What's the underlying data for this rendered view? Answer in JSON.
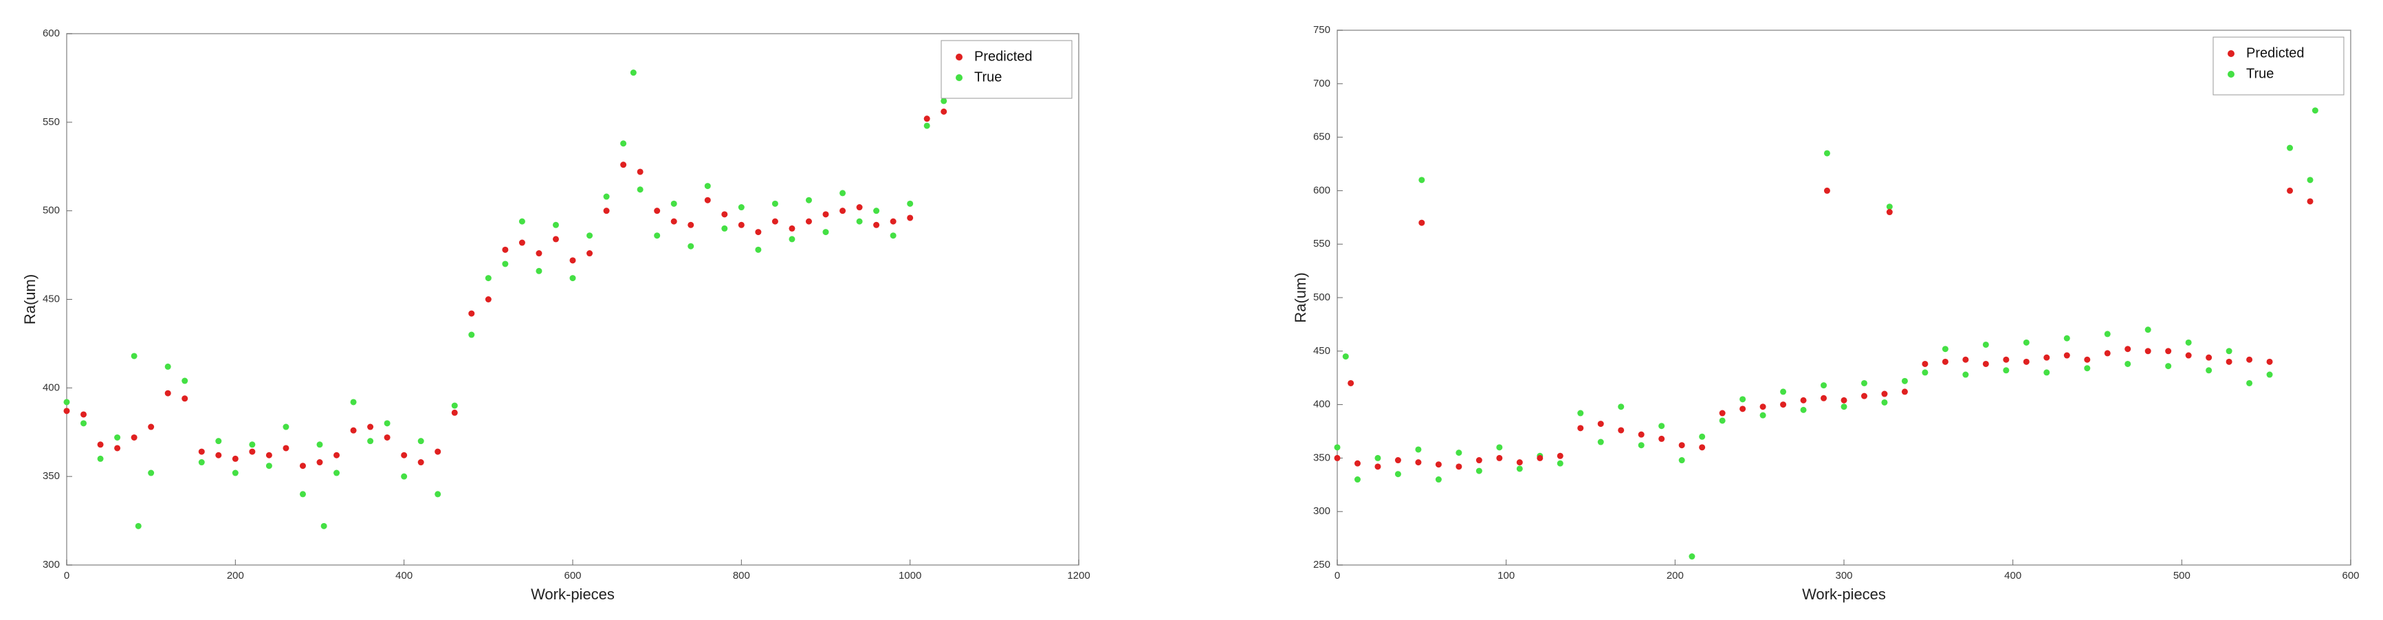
{
  "chart_data": [
    {
      "type": "scatter",
      "xlabel": "Work-pieces",
      "ylabel": "Ra(um)",
      "xlim": [
        0,
        1200
      ],
      "xticks": [
        0,
        200,
        400,
        600,
        800,
        1000,
        1200
      ],
      "ylim": [
        300,
        600
      ],
      "yticks": [
        300,
        350,
        400,
        450,
        500,
        550,
        600
      ],
      "legend": "upper right",
      "series": [
        {
          "name": "Predicted",
          "color": "#e02020",
          "x": [
            0,
            20,
            40,
            60,
            80,
            100,
            120,
            140,
            160,
            180,
            200,
            220,
            240,
            260,
            280,
            300,
            320,
            340,
            360,
            380,
            400,
            420,
            440,
            460,
            480,
            500,
            520,
            540,
            560,
            580,
            600,
            620,
            640,
            660,
            680,
            700,
            720,
            740,
            760,
            780,
            800,
            820,
            840,
            860,
            880,
            900,
            920,
            940,
            960,
            980,
            1000,
            1020,
            1040
          ],
          "values": [
            387,
            385,
            368,
            366,
            372,
            378,
            397,
            394,
            364,
            362,
            360,
            364,
            362,
            366,
            356,
            358,
            362,
            376,
            378,
            372,
            362,
            358,
            364,
            386,
            442,
            450,
            478,
            482,
            476,
            484,
            472,
            476,
            500,
            526,
            522,
            500,
            494,
            492,
            506,
            498,
            492,
            488,
            494,
            490,
            494,
            498,
            500,
            502,
            492,
            494,
            496,
            552,
            556
          ]
        },
        {
          "name": "True",
          "color": "#44e044",
          "x": [
            0,
            20,
            40,
            60,
            80,
            100,
            120,
            140,
            160,
            180,
            200,
            220,
            240,
            260,
            280,
            300,
            320,
            340,
            360,
            380,
            400,
            420,
            440,
            460,
            480,
            500,
            520,
            540,
            560,
            580,
            600,
            620,
            640,
            660,
            680,
            700,
            720,
            740,
            760,
            780,
            800,
            820,
            840,
            860,
            880,
            900,
            920,
            940,
            960,
            980,
            1000,
            1020,
            1040,
            85,
            305,
            672
          ],
          "values": [
            392,
            380,
            360,
            372,
            418,
            352,
            412,
            404,
            358,
            370,
            352,
            368,
            356,
            378,
            340,
            368,
            352,
            392,
            370,
            380,
            350,
            370,
            340,
            390,
            430,
            462,
            470,
            494,
            466,
            492,
            462,
            486,
            508,
            538,
            512,
            486,
            504,
            480,
            514,
            490,
            502,
            478,
            504,
            484,
            506,
            488,
            510,
            494,
            500,
            486,
            504,
            548,
            562,
            322,
            322,
            578
          ]
        }
      ]
    },
    {
      "type": "scatter",
      "xlabel": "Work-pieces",
      "ylabel": "Ra(um)",
      "xlim": [
        0,
        600
      ],
      "xticks": [
        0,
        100,
        200,
        300,
        400,
        500,
        600
      ],
      "ylim": [
        250,
        750
      ],
      "yticks": [
        250,
        300,
        350,
        400,
        450,
        500,
        550,
        600,
        650,
        700,
        750
      ],
      "legend": "upper right",
      "series": [
        {
          "name": "Predicted",
          "color": "#e02020",
          "x": [
            0,
            12,
            24,
            36,
            48,
            60,
            72,
            84,
            96,
            108,
            120,
            132,
            144,
            156,
            168,
            180,
            192,
            204,
            216,
            228,
            240,
            252,
            264,
            276,
            288,
            300,
            312,
            324,
            336,
            348,
            360,
            372,
            384,
            396,
            408,
            420,
            432,
            444,
            456,
            468,
            480,
            492,
            504,
            516,
            528,
            540,
            552,
            564,
            576,
            50,
            290,
            327,
            8
          ],
          "values": [
            350,
            345,
            342,
            348,
            346,
            344,
            342,
            348,
            350,
            346,
            350,
            352,
            378,
            382,
            376,
            372,
            368,
            362,
            360,
            392,
            396,
            398,
            400,
            404,
            406,
            404,
            408,
            410,
            412,
            438,
            440,
            442,
            438,
            442,
            440,
            444,
            446,
            442,
            448,
            452,
            450,
            450,
            446,
            444,
            440,
            442,
            440,
            600,
            590,
            570,
            600,
            580,
            420
          ]
        },
        {
          "name": "True",
          "color": "#44e044",
          "x": [
            0,
            12,
            24,
            36,
            48,
            60,
            72,
            84,
            96,
            108,
            120,
            132,
            144,
            156,
            168,
            180,
            192,
            204,
            216,
            228,
            240,
            252,
            264,
            276,
            288,
            300,
            312,
            324,
            336,
            348,
            360,
            372,
            384,
            396,
            408,
            420,
            432,
            444,
            456,
            468,
            480,
            492,
            504,
            516,
            528,
            540,
            552,
            564,
            576,
            50,
            290,
            327,
            210,
            5,
            579
          ],
          "values": [
            360,
            330,
            350,
            335,
            358,
            330,
            355,
            338,
            360,
            340,
            352,
            345,
            392,
            365,
            398,
            362,
            380,
            348,
            370,
            385,
            405,
            390,
            412,
            395,
            418,
            398,
            420,
            402,
            422,
            430,
            452,
            428,
            456,
            432,
            458,
            430,
            462,
            434,
            466,
            438,
            470,
            436,
            458,
            432,
            450,
            420,
            428,
            640,
            610,
            610,
            635,
            585,
            258,
            445,
            675
          ]
        }
      ]
    }
  ]
}
